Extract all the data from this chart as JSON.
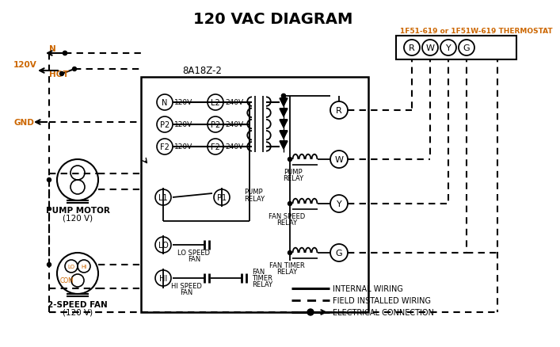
{
  "title": "120 VAC DIAGRAM",
  "bg_color": "#ffffff",
  "black": "#000000",
  "orange": "#cc6600",
  "thermostat_label": "1F51-619 or 1F51W-619 THERMOSTAT",
  "control_box_label": "8A18Z-2",
  "thermostat_terminals": [
    "R",
    "W",
    "Y",
    "G"
  ],
  "term_left_labels": [
    "N",
    "P2",
    "F2"
  ],
  "term_right_labels": [
    "L2",
    "P2",
    "F2"
  ],
  "volt_left": [
    "120V",
    "120V",
    "120V"
  ],
  "volt_right": [
    "240V",
    "240V",
    "240V"
  ],
  "legend_items": [
    "INTERNAL WIRING",
    "FIELD INSTALLED WIRING",
    "ELECTRICAL CONNECTION"
  ]
}
